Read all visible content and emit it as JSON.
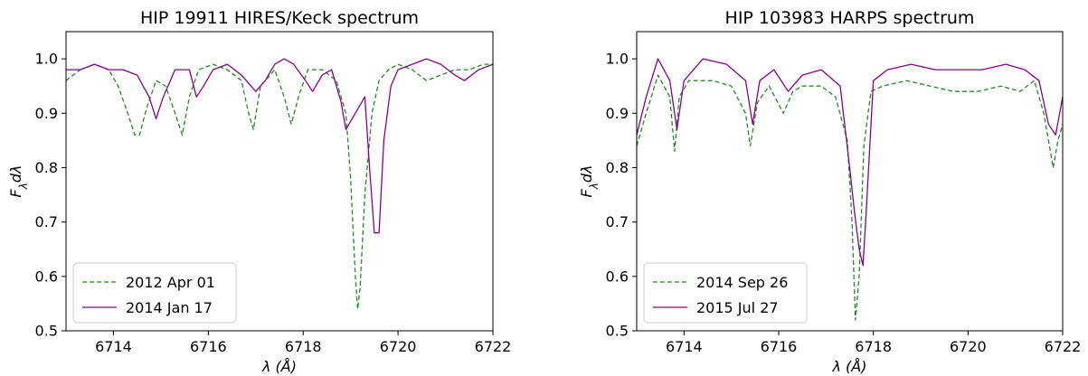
{
  "chart_data": [
    {
      "type": "line",
      "title": "HIP 19911 HIRES/Keck spectrum",
      "xlabel": "λ (Å)",
      "ylabel": "F_λ dλ",
      "xlim": [
        6713,
        6722
      ],
      "ylim": [
        0.5,
        1.05
      ],
      "xticks": [
        "6714",
        "6716",
        "6718",
        "6720",
        "6722"
      ],
      "yticks": [
        "0.5",
        "0.6",
        "0.7",
        "0.8",
        "0.9",
        "1.0"
      ],
      "grid": false,
      "legend_position": "lower-left",
      "series": [
        {
          "name": "2012 Apr 01",
          "color": "#228B22",
          "style": "dashed",
          "x": [
            6713.0,
            6713.3,
            6713.6,
            6713.9,
            6714.1,
            6714.3,
            6714.45,
            6714.55,
            6714.7,
            6714.9,
            6715.1,
            6715.3,
            6715.45,
            6715.6,
            6715.8,
            6716.1,
            6716.4,
            6716.7,
            6716.85,
            6716.95,
            6717.1,
            6717.4,
            6717.6,
            6717.75,
            6717.9,
            6718.1,
            6718.4,
            6718.7,
            6718.9,
            6719.0,
            6719.1,
            6719.15,
            6719.2,
            6719.3,
            6719.45,
            6719.6,
            6719.8,
            6720.0,
            6720.3,
            6720.6,
            6720.9,
            6721.2,
            6721.5,
            6721.8,
            6722.0
          ],
          "y": [
            0.96,
            0.98,
            0.99,
            0.98,
            0.95,
            0.9,
            0.86,
            0.86,
            0.91,
            0.96,
            0.95,
            0.9,
            0.86,
            0.93,
            0.98,
            0.99,
            0.98,
            0.96,
            0.9,
            0.87,
            0.95,
            0.98,
            0.93,
            0.88,
            0.93,
            0.98,
            0.98,
            0.96,
            0.9,
            0.78,
            0.6,
            0.54,
            0.58,
            0.75,
            0.9,
            0.96,
            0.98,
            0.99,
            0.98,
            0.96,
            0.97,
            0.98,
            0.98,
            0.99,
            0.99
          ]
        },
        {
          "name": "2014 Jan 17",
          "color": "#8B008B",
          "style": "solid",
          "x": [
            6713.0,
            6713.3,
            6713.6,
            6713.9,
            6714.2,
            6714.5,
            6714.75,
            6714.9,
            6715.05,
            6715.3,
            6715.6,
            6715.75,
            6715.9,
            6716.1,
            6716.4,
            6716.7,
            6717.0,
            6717.2,
            6717.4,
            6717.6,
            6717.8,
            6718.05,
            6718.2,
            6718.4,
            6718.6,
            6718.8,
            6718.9,
            6719.1,
            6719.3,
            6719.4,
            6719.5,
            6719.6,
            6719.7,
            6719.85,
            6720.0,
            6720.3,
            6720.6,
            6720.9,
            6721.2,
            6721.4,
            6721.7,
            6722.0
          ],
          "y": [
            0.98,
            0.98,
            0.99,
            0.98,
            0.98,
            0.97,
            0.93,
            0.89,
            0.93,
            0.98,
            0.98,
            0.93,
            0.95,
            0.98,
            0.99,
            0.97,
            0.94,
            0.96,
            0.99,
            1.0,
            0.99,
            0.96,
            0.94,
            0.97,
            0.98,
            0.92,
            0.87,
            0.9,
            0.93,
            0.8,
            0.68,
            0.68,
            0.85,
            0.95,
            0.98,
            0.99,
            1.0,
            0.99,
            0.97,
            0.96,
            0.98,
            0.99
          ]
        }
      ]
    },
    {
      "type": "line",
      "title": "HIP 103983 HARPS spectrum",
      "xlabel": "λ (Å)",
      "ylabel": "F_λ dλ",
      "xlim": [
        6713,
        6722
      ],
      "ylim": [
        0.5,
        1.05
      ],
      "xticks": [
        "6714",
        "6716",
        "6718",
        "6720",
        "6722"
      ],
      "yticks": [
        "0.5",
        "0.6",
        "0.7",
        "0.8",
        "0.9",
        "1.0"
      ],
      "grid": false,
      "legend_position": "lower-left",
      "series": [
        {
          "name": "2014 Sep 26",
          "color": "#228B22",
          "style": "dashed",
          "x": [
            6713.0,
            6713.2,
            6713.45,
            6713.7,
            6713.8,
            6713.9,
            6714.1,
            6714.6,
            6715.0,
            6715.3,
            6715.4,
            6715.55,
            6715.8,
            6716.1,
            6716.3,
            6716.5,
            6716.9,
            6717.2,
            6717.45,
            6717.55,
            6717.62,
            6717.7,
            6717.8,
            6717.95,
            6718.2,
            6718.7,
            6719.2,
            6719.7,
            6720.2,
            6720.7,
            6721.1,
            6721.4,
            6721.6,
            6721.8,
            6721.9,
            6722.0
          ],
          "y": [
            0.84,
            0.9,
            0.97,
            0.93,
            0.83,
            0.93,
            0.96,
            0.96,
            0.95,
            0.9,
            0.84,
            0.92,
            0.95,
            0.9,
            0.94,
            0.95,
            0.95,
            0.93,
            0.85,
            0.7,
            0.52,
            0.6,
            0.84,
            0.94,
            0.95,
            0.96,
            0.95,
            0.94,
            0.94,
            0.95,
            0.94,
            0.96,
            0.9,
            0.8,
            0.85,
            0.88
          ]
        },
        {
          "name": "2015 Jul 27",
          "color": "#8B008B",
          "style": "solid",
          "x": [
            6713.0,
            6713.2,
            6713.45,
            6713.7,
            6713.85,
            6714.0,
            6714.4,
            6714.9,
            6715.3,
            6715.45,
            6715.6,
            6715.9,
            6716.2,
            6716.5,
            6716.9,
            6717.3,
            6717.5,
            6717.6,
            6717.7,
            6717.78,
            6717.85,
            6718.0,
            6718.3,
            6718.8,
            6719.3,
            6719.8,
            6720.3,
            6720.8,
            6721.2,
            6721.5,
            6721.7,
            6721.85,
            6722.0
          ],
          "y": [
            0.86,
            0.93,
            1.0,
            0.96,
            0.87,
            0.96,
            1.0,
            0.99,
            0.96,
            0.88,
            0.96,
            0.98,
            0.94,
            0.97,
            0.98,
            0.95,
            0.8,
            0.72,
            0.65,
            0.62,
            0.72,
            0.96,
            0.98,
            0.99,
            0.98,
            0.98,
            0.98,
            0.99,
            0.98,
            0.96,
            0.88,
            0.86,
            0.93
          ]
        }
      ]
    }
  ]
}
